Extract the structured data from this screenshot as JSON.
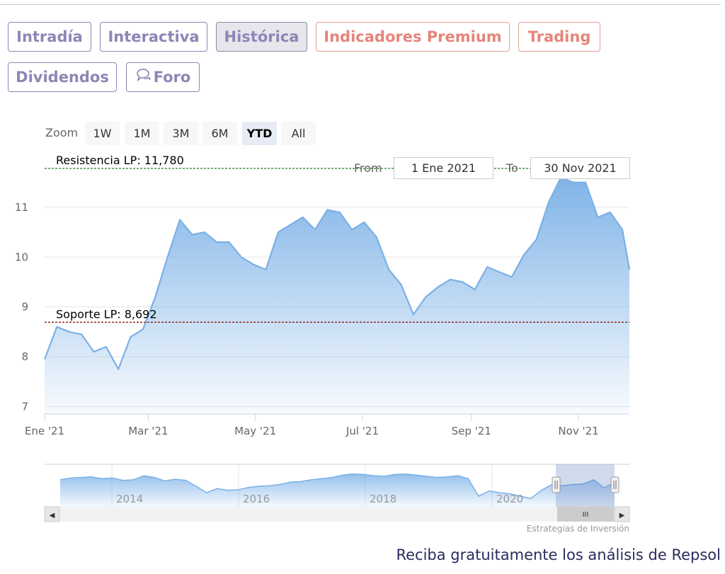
{
  "tabs": [
    {
      "label": "Intradía",
      "style": "normal"
    },
    {
      "label": "Interactiva",
      "style": "normal"
    },
    {
      "label": "Histórica",
      "style": "active"
    },
    {
      "label": "Indicadores Premium",
      "style": "premium"
    },
    {
      "label": "Trading",
      "style": "premium"
    },
    {
      "label": "Dividendos",
      "style": "normal"
    },
    {
      "label": "Foro",
      "style": "normal",
      "icon": "chat-bubble-icon"
    }
  ],
  "zoom": {
    "label": "Zoom",
    "buttons": [
      "1W",
      "1M",
      "3M",
      "6M",
      "YTD",
      "All"
    ],
    "selected": "YTD"
  },
  "range": {
    "from_label": "From",
    "from_value": "1 Ene 2021",
    "to_label": "To",
    "to_value": "30 Nov 2021"
  },
  "chart_data": {
    "type": "area",
    "x": [
      "2021-01-01",
      "2021-01-08",
      "2021-01-15",
      "2021-01-22",
      "2021-01-29",
      "2021-02-05",
      "2021-02-12",
      "2021-02-19",
      "2021-02-26",
      "2021-03-05",
      "2021-03-12",
      "2021-03-19",
      "2021-03-26",
      "2021-04-02",
      "2021-04-09",
      "2021-04-16",
      "2021-04-23",
      "2021-04-30",
      "2021-05-07",
      "2021-05-14",
      "2021-05-21",
      "2021-05-28",
      "2021-06-04",
      "2021-06-11",
      "2021-06-18",
      "2021-06-25",
      "2021-07-02",
      "2021-07-09",
      "2021-07-16",
      "2021-07-23",
      "2021-07-30",
      "2021-08-06",
      "2021-08-13",
      "2021-08-20",
      "2021-08-27",
      "2021-09-03",
      "2021-09-10",
      "2021-09-17",
      "2021-09-24",
      "2021-10-01",
      "2021-10-08",
      "2021-10-15",
      "2021-10-22",
      "2021-10-29",
      "2021-11-05",
      "2021-11-12",
      "2021-11-19",
      "2021-11-26",
      "2021-11-30"
    ],
    "values": [
      7.95,
      8.6,
      8.5,
      8.45,
      8.1,
      8.2,
      7.75,
      8.4,
      8.55,
      9.2,
      10.0,
      10.75,
      10.45,
      10.5,
      10.3,
      10.3,
      10.0,
      9.85,
      9.75,
      10.5,
      10.65,
      10.8,
      10.55,
      10.95,
      10.9,
      10.55,
      10.7,
      10.4,
      9.75,
      9.45,
      8.85,
      9.2,
      9.4,
      9.55,
      9.5,
      9.35,
      9.8,
      9.7,
      9.6,
      10.05,
      10.35,
      11.1,
      11.6,
      11.5,
      11.5,
      10.8,
      10.9,
      10.55,
      9.75
    ],
    "ylim": [
      6.85,
      11.95
    ],
    "y_ticks": [
      7,
      8,
      9,
      10,
      11
    ],
    "x_tick_labels": [
      "Ene '21",
      "Mar '21",
      "May '21",
      "Jul '21",
      "Sep '21",
      "Nov '21"
    ],
    "x_tick_dates": [
      "2021-01-01",
      "2021-03-01",
      "2021-05-01",
      "2021-07-01",
      "2021-09-01",
      "2021-11-01"
    ],
    "grid": true,
    "lines": [
      {
        "label": "Resistencia LP: 11,780",
        "value": 11.78,
        "color": "#2e8b3e"
      },
      {
        "label": "Soporte LP: 8,692",
        "value": 8.692,
        "color": "#8b1a1a"
      }
    ],
    "series_color": "#7ab0e6"
  },
  "navigator": {
    "year_labels": [
      "2014",
      "2016",
      "2018",
      "2020"
    ],
    "values": [
      13.6,
      13.9,
      14.0,
      14.1,
      13.8,
      13.9,
      13.5,
      13.6,
      14.3,
      14.0,
      13.4,
      13.7,
      13.5,
      12.5,
      11.4,
      12.1,
      11.8,
      11.9,
      12.3,
      12.5,
      12.6,
      12.8,
      13.2,
      13.3,
      13.6,
      13.8,
      14.0,
      14.4,
      14.6,
      14.5,
      14.3,
      14.2,
      14.5,
      14.6,
      14.4,
      14.2,
      14.0,
      14.1,
      14.3,
      13.8,
      10.8,
      11.7,
      11.4,
      11.2,
      10.8,
      10.4,
      11.8,
      12.8,
      12.6,
      12.8,
      12.9,
      13.6,
      12.2,
      13.2
    ],
    "scroll_glyph": "III",
    "left_arrow": "◀",
    "right_arrow": "▶",
    "handle_glyph": "||"
  },
  "credits": "Estrategias de Inversión",
  "footer_text": "Reciba gratuitamente los análisis de Repsol",
  "colors": {
    "accent": "#8e86b6",
    "premium": "#e5857a",
    "series": "#7ab0e6"
  }
}
